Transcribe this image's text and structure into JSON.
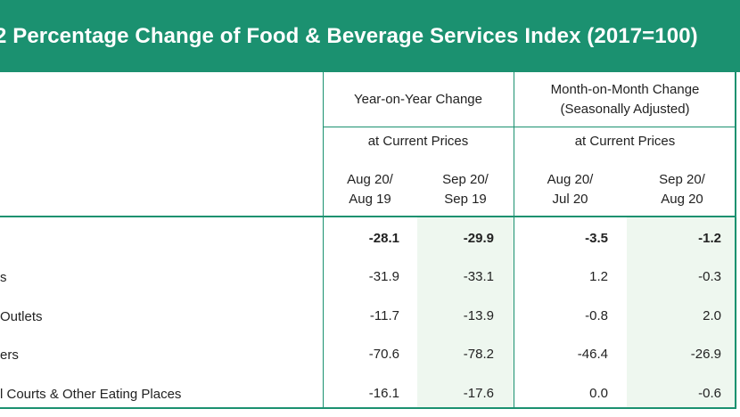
{
  "title": "2  Percentage Change of Food & Beverage Services Index (2017=100)",
  "headers": {
    "yoy": "Year-on-Year Change",
    "mom_line1": "Month-on-Month Change",
    "mom_line2": "(Seasonally Adjusted)",
    "yoy_prices": "at Current Prices",
    "mom_prices": "at Current Prices",
    "cols": [
      {
        "l1": "Aug 20/",
        "l2": "Aug 19"
      },
      {
        "l1": "Sep 20/",
        "l2": "Sep 19"
      },
      {
        "l1": "Aug 20/",
        "l2": "Jul 20"
      },
      {
        "l1": "Sep 20/",
        "l2": "Aug 20"
      }
    ]
  },
  "rows": [
    {
      "label": "",
      "values": [
        "-28.1",
        "-29.9",
        "-3.5",
        "-1.2"
      ],
      "bold": true
    },
    {
      "label": "s",
      "values": [
        "-31.9",
        "-33.1",
        "1.2",
        "-0.3"
      ],
      "bold": false
    },
    {
      "label": "Outlets",
      "values": [
        "-11.7",
        "-13.9",
        "-0.8",
        "2.0"
      ],
      "bold": false
    },
    {
      "label": "ers",
      "values": [
        "-70.6",
        "-78.2",
        "-46.4",
        "-26.9"
      ],
      "bold": false
    },
    {
      "label": "l Courts & Other Eating Places",
      "values": [
        "-16.1",
        "-17.6",
        "0.0",
        "-0.6"
      ],
      "bold": false
    }
  ]
}
